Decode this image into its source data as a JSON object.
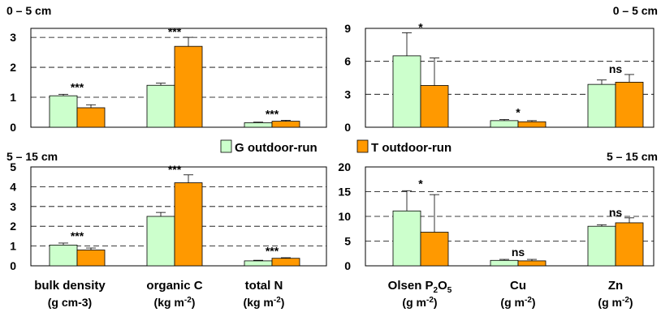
{
  "chart_data": [
    {
      "type": "bar",
      "title": "0 – 5 cm",
      "ylim": [
        0,
        3.3
      ],
      "yticks": [
        "0",
        "1",
        "2",
        "3"
      ],
      "grid": "dashed horizontal",
      "series": [
        {
          "name": "G outdoor-run",
          "values": [
            1.05,
            1.4,
            0.15
          ],
          "errors": [
            0.05,
            0.07,
            0.02
          ]
        },
        {
          "name": "T outdoor-run",
          "values": [
            0.65,
            2.7,
            0.2
          ],
          "errors": [
            0.1,
            0.3,
            0.03
          ]
        }
      ],
      "annotations": [
        "***",
        "***",
        "***"
      ]
    },
    {
      "type": "bar",
      "title": "0 – 5 cm",
      "ylim": [
        0,
        9
      ],
      "yticks": [
        "0",
        "3",
        "6",
        "9"
      ],
      "grid": "dashed horizontal",
      "series": [
        {
          "name": "G outdoor-run",
          "values": [
            6.5,
            0.6,
            3.9
          ],
          "errors": [
            2.1,
            0.1,
            0.4
          ]
        },
        {
          "name": "T outdoor-run",
          "values": [
            3.8,
            0.5,
            4.1
          ],
          "errors": [
            2.5,
            0.1,
            0.7
          ]
        }
      ],
      "annotations": [
        "*",
        "*",
        "ns"
      ]
    },
    {
      "type": "bar",
      "title": "5 – 15 cm",
      "ylim": [
        0,
        5
      ],
      "yticks": [
        "0",
        "1",
        "2",
        "3",
        "4",
        "5"
      ],
      "grid": "dashed horizontal",
      "series": [
        {
          "name": "G outdoor-run",
          "values": [
            1.05,
            2.5,
            0.25
          ],
          "errors": [
            0.1,
            0.2,
            0.03
          ]
        },
        {
          "name": "T outdoor-run",
          "values": [
            0.8,
            4.2,
            0.38
          ],
          "errors": [
            0.1,
            0.4,
            0.03
          ]
        }
      ],
      "annotations": [
        "***",
        "***",
        "***"
      ],
      "categories": [
        {
          "name": "bulk density",
          "unit": "(g cm-3)"
        },
        {
          "name": "organic C",
          "unit": "(kg m",
          "unit_sup": "-2",
          "unit_end": ")"
        },
        {
          "name": "total N",
          "unit": "(kg m",
          "unit_sup": "-2",
          "unit_end": ")"
        }
      ]
    },
    {
      "type": "bar",
      "title": "5 – 15 cm",
      "ylim": [
        0,
        20
      ],
      "yticks": [
        "0",
        "5",
        "10",
        "15",
        "20"
      ],
      "grid": "dashed horizontal",
      "series": [
        {
          "name": "G outdoor-run",
          "values": [
            11.1,
            1.1,
            8.0
          ],
          "errors": [
            4.1,
            0.2,
            0.3
          ]
        },
        {
          "name": "T outdoor-run",
          "values": [
            6.8,
            1.0,
            8.7
          ],
          "errors": [
            7.6,
            0.3,
            1.0
          ]
        }
      ],
      "annotations": [
        "*",
        "ns",
        "ns"
      ],
      "categories": [
        {
          "name": "Olsen P",
          "sub1": "2",
          "mid": "O",
          "sub2": "5",
          "unit": "(g m",
          "unit_sup": "-2",
          "unit_end": ")"
        },
        {
          "name": "Cu",
          "unit": "(g m",
          "unit_sup": "-2",
          "unit_end": ")"
        },
        {
          "name": "Zn",
          "unit": "(g m",
          "unit_sup": "-2",
          "unit_end": ")"
        }
      ]
    }
  ],
  "legend": [
    {
      "label": "G outdoor-run",
      "color": "#ccffcc"
    },
    {
      "label": "T outdoor-run",
      "color": "#ff9900"
    }
  ],
  "colors": {
    "g_fill": "#ccffcc",
    "t_fill": "#ff9900",
    "edge": "#000000"
  }
}
